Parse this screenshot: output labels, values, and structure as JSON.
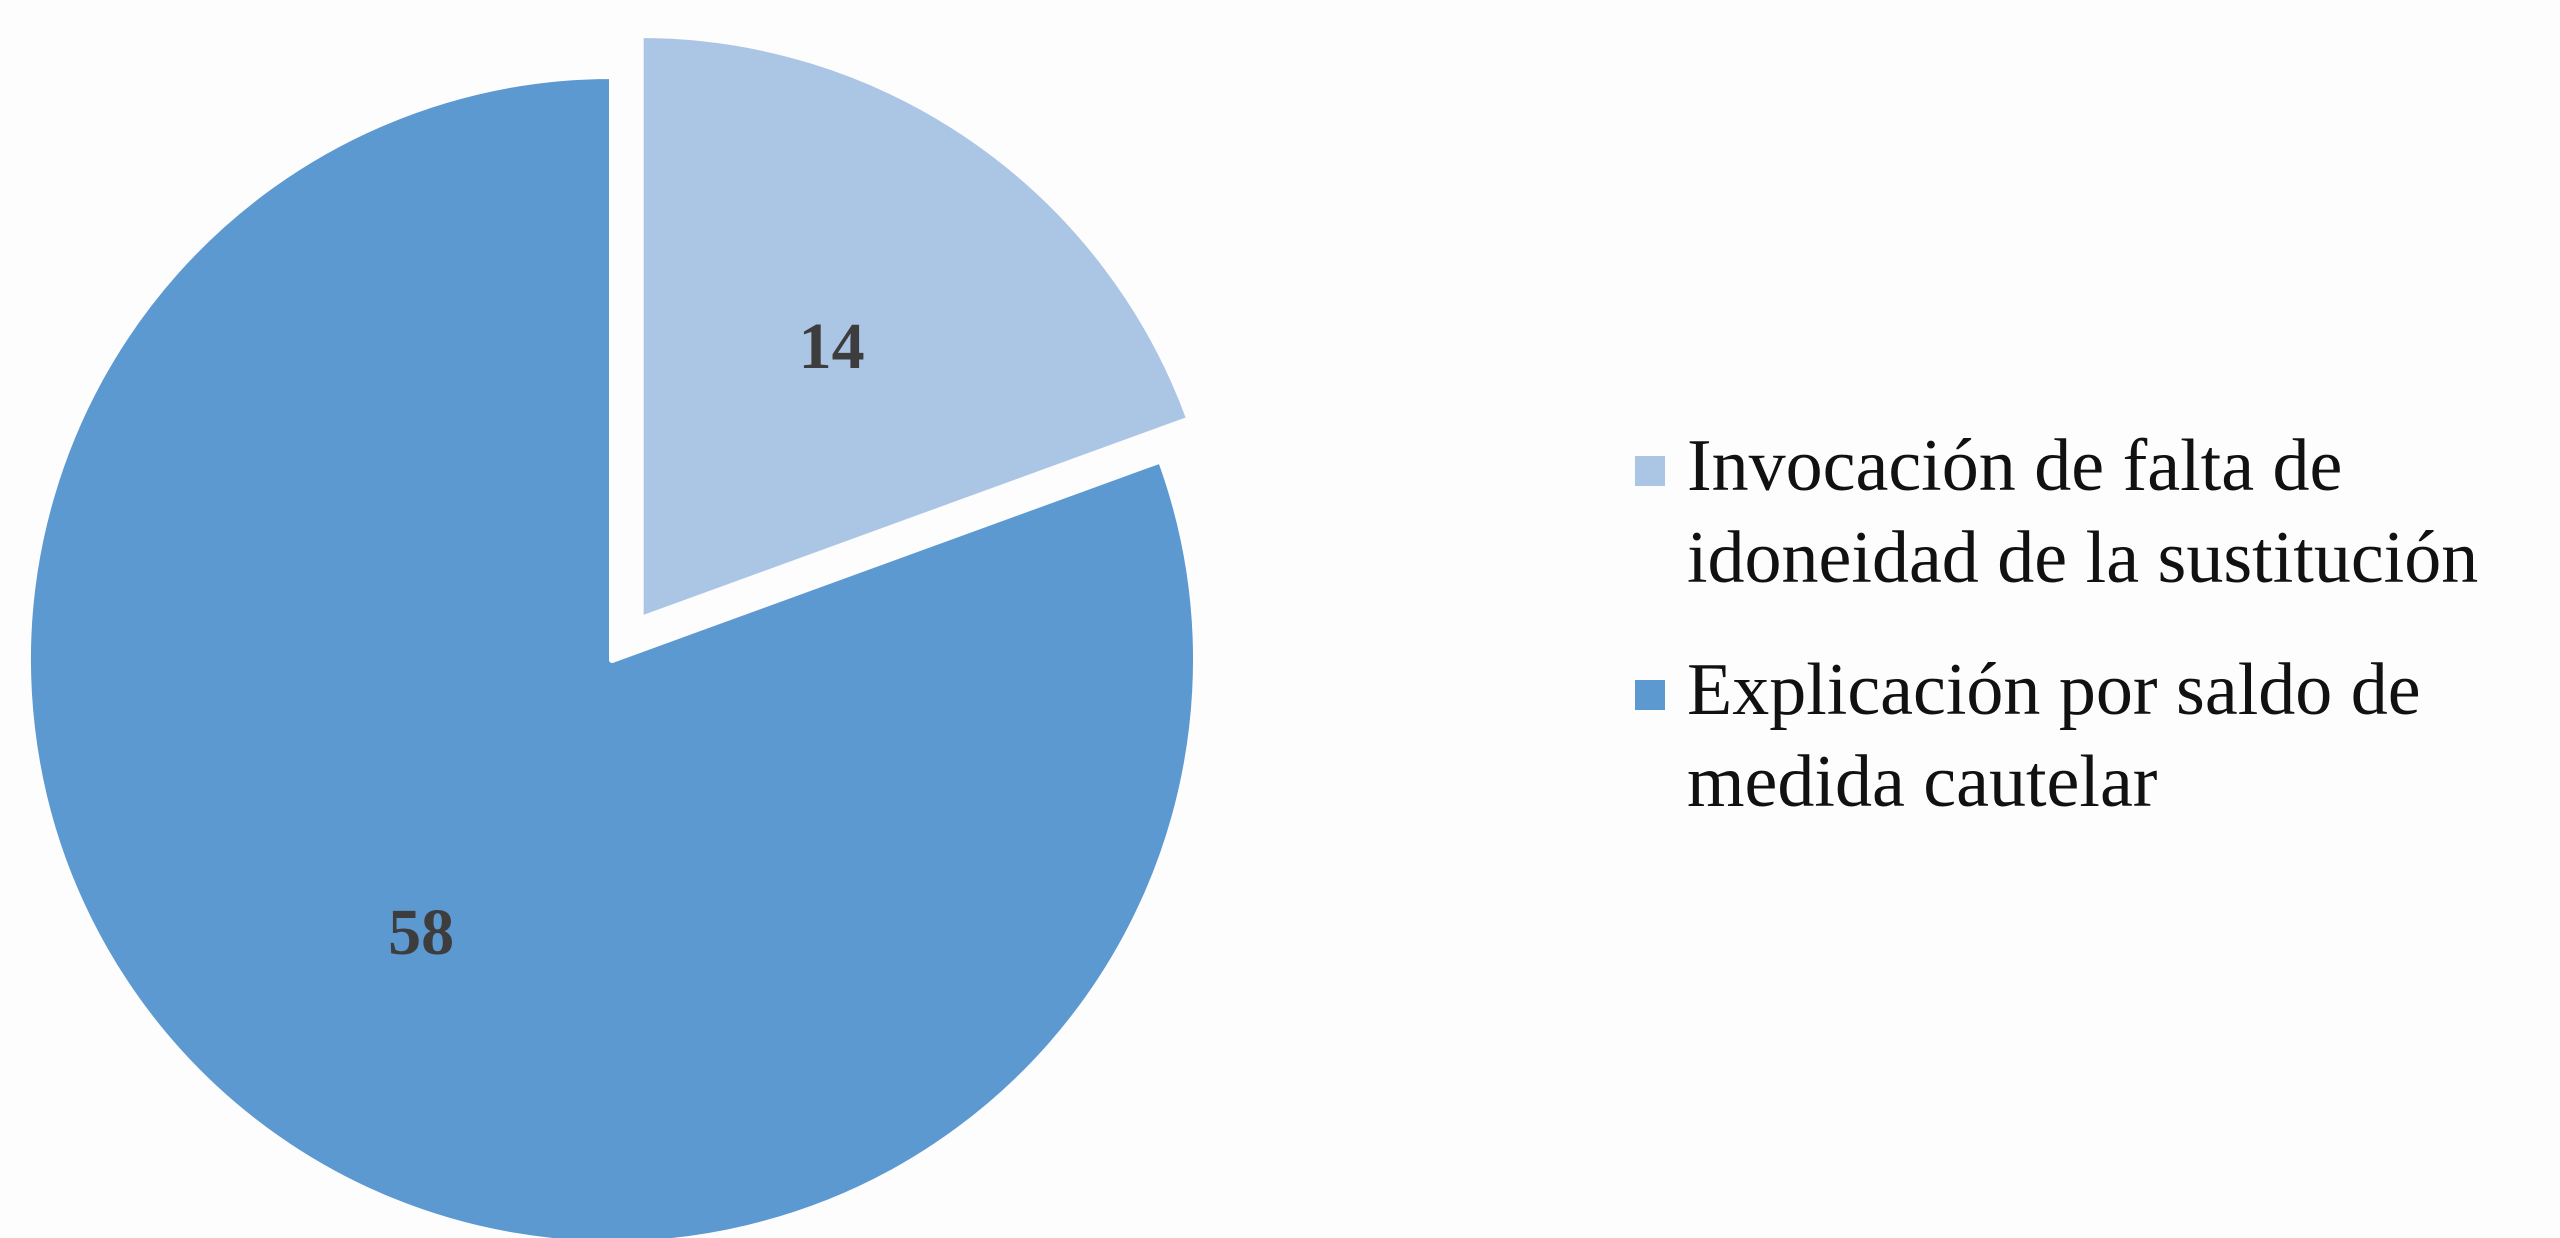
{
  "chart_data": {
    "type": "pie",
    "slices": [
      {
        "label": "Invocación de falta de\nidoneidad de la sustitución",
        "value": 14,
        "color": "#abc5e5",
        "exploded": true
      },
      {
        "label": "Explicación por saldo de\nmedida cautelar",
        "value": 58,
        "color": "#5d99d1",
        "exploded": false
      }
    ],
    "start_angle_deg": 0,
    "direction": "clockwise",
    "legend_position": "right",
    "data_labels": true
  }
}
